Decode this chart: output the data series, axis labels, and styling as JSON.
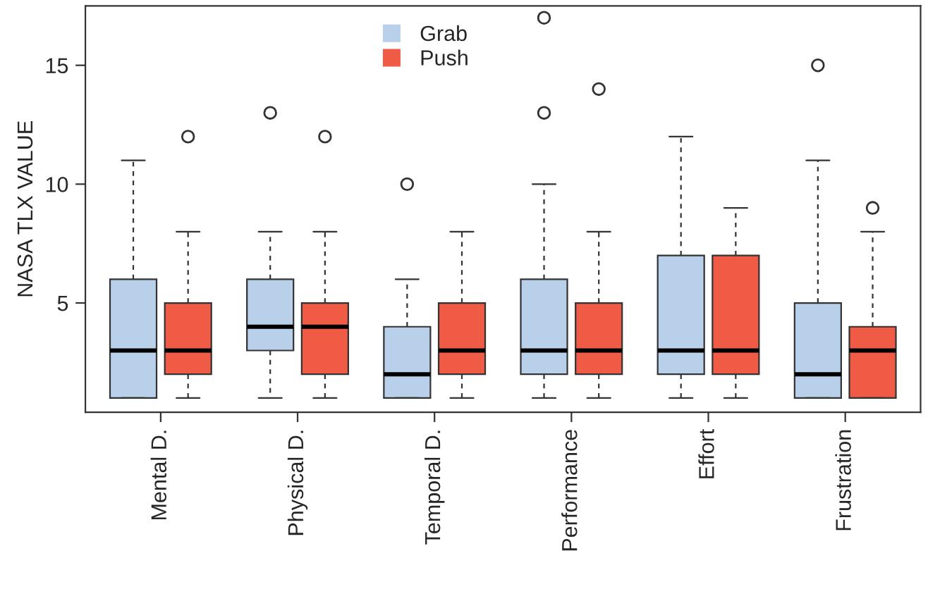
{
  "chart_data": {
    "type": "box",
    "ylabel": "NASA TLX VALUE",
    "categories": [
      "Mental D.",
      "Physical D.",
      "Temporal D.",
      "Performance",
      "Effort",
      "Frustration"
    ],
    "series": [
      {
        "name": "Grab",
        "color": "#b8d0ea",
        "boxes": [
          {
            "low": 1,
            "q1": 1,
            "median": 3,
            "q3": 6,
            "high": 11
          },
          {
            "low": 1,
            "q1": 3,
            "median": 4,
            "q3": 6,
            "high": 8,
            "outliers": [
              13
            ]
          },
          {
            "low": 1,
            "q1": 1,
            "median": 2,
            "q3": 4,
            "high": 6,
            "outliers": [
              10
            ]
          },
          {
            "low": 1,
            "q1": 2,
            "median": 3,
            "q3": 6,
            "high": 10,
            "outliers": [
              13,
              17
            ]
          },
          {
            "low": 1,
            "q1": 2,
            "median": 3,
            "q3": 7,
            "high": 12
          },
          {
            "low": 1,
            "q1": 1,
            "median": 2,
            "q3": 5,
            "high": 11,
            "outliers": [
              15
            ]
          }
        ]
      },
      {
        "name": "Push",
        "color": "#ef5b45",
        "boxes": [
          {
            "low": 1,
            "q1": 2,
            "median": 3,
            "q3": 5,
            "high": 8,
            "outliers": [
              12
            ]
          },
          {
            "low": 1,
            "q1": 2,
            "median": 4,
            "q3": 5,
            "high": 8,
            "outliers": [
              12
            ]
          },
          {
            "low": 1,
            "q1": 2,
            "median": 3,
            "q3": 5,
            "high": 8
          },
          {
            "low": 1,
            "q1": 2,
            "median": 3,
            "q3": 5,
            "high": 8,
            "outliers": [
              14
            ]
          },
          {
            "low": 1,
            "q1": 2,
            "median": 3,
            "q3": 7,
            "high": 9
          },
          {
            "low": 1,
            "q1": 1,
            "median": 3,
            "q3": 4,
            "high": 8,
            "outliers": [
              9
            ]
          }
        ]
      }
    ],
    "ylim": [
      0.4,
      17.5
    ],
    "yticks": [
      5,
      10,
      15
    ],
    "grid": false,
    "legend": "top"
  }
}
